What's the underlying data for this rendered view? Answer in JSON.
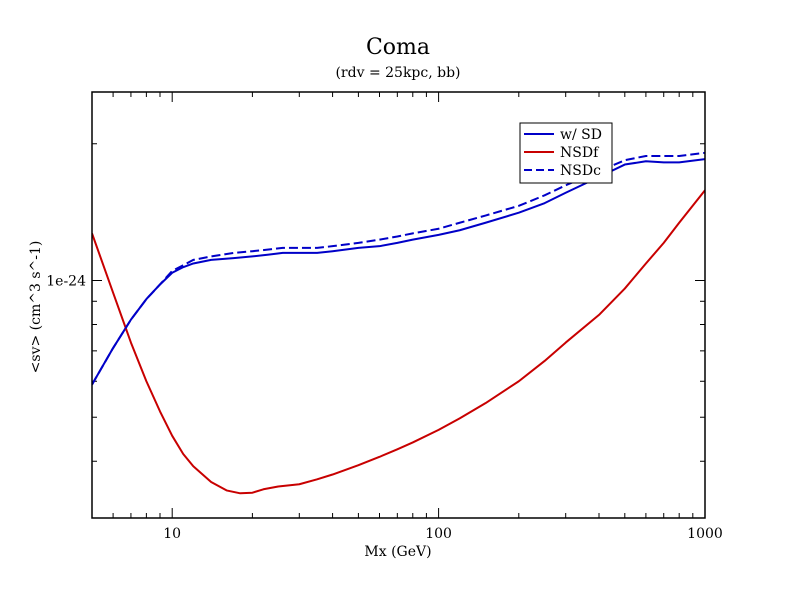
{
  "chart_data": {
    "type": "line",
    "title": "Coma",
    "subtitle": "(rdv = 25kpc, bb)",
    "xlabel": "Mx (GeV)",
    "ylabel": "<sv> (cm^3 s^-1)",
    "x_scale": "log",
    "y_scale": "log",
    "xlim": [
      5,
      1000
    ],
    "ylim": [
      3e-25,
      2.6e-24
    ],
    "x_ticks": [
      {
        "value": 10,
        "label": "10"
      },
      {
        "value": 100,
        "label": "100"
      },
      {
        "value": 1000,
        "label": "1000"
      }
    ],
    "y_ticks": [
      {
        "value": 1e-24,
        "label": "1e-24"
      }
    ],
    "grid": false,
    "legend_position": "top-right",
    "series": [
      {
        "name": "w/ SD",
        "color": "#0000c8",
        "dash": "solid",
        "x": [
          5,
          6,
          7,
          8,
          9,
          10,
          11,
          12,
          14,
          17,
          20,
          23,
          26,
          30,
          35,
          40,
          50,
          60,
          70,
          80,
          100,
          120,
          150,
          200,
          250,
          300,
          400,
          500,
          600,
          700,
          800,
          1000
        ],
        "y": [
          5.9e-25,
          7.1e-25,
          8.2e-25,
          9.1e-25,
          9.8e-25,
          1.04e-24,
          1.07e-24,
          1.09e-24,
          1.11e-24,
          1.12e-24,
          1.13e-24,
          1.14e-24,
          1.15e-24,
          1.15e-24,
          1.15e-24,
          1.16e-24,
          1.18e-24,
          1.19e-24,
          1.21e-24,
          1.23e-24,
          1.26e-24,
          1.29e-24,
          1.34e-24,
          1.41e-24,
          1.48e-24,
          1.56e-24,
          1.69e-24,
          1.8e-24,
          1.83e-24,
          1.82e-24,
          1.82e-24,
          1.85e-24
        ]
      },
      {
        "name": "NSDf",
        "color": "#c80000",
        "dash": "solid",
        "x": [
          5,
          6,
          7,
          8,
          9,
          10,
          11,
          12,
          14,
          16,
          18,
          20,
          22,
          25,
          30,
          35,
          40,
          50,
          60,
          70,
          80,
          100,
          120,
          150,
          200,
          250,
          300,
          400,
          500,
          600,
          700,
          800,
          1000
        ],
        "y": [
          1.27e-24,
          9.4e-25,
          7.3e-25,
          6e-25,
          5.15e-25,
          4.55e-25,
          4.15e-25,
          3.9e-25,
          3.6e-25,
          3.45e-25,
          3.4e-25,
          3.41e-25,
          3.47e-25,
          3.52e-25,
          3.56e-25,
          3.65e-25,
          3.74e-25,
          3.92e-25,
          4.09e-25,
          4.25e-25,
          4.4e-25,
          4.69e-25,
          4.97e-25,
          5.37e-25,
          6e-25,
          6.65e-25,
          7.3e-25,
          8.4e-25,
          9.6e-25,
          1.09e-24,
          1.21e-24,
          1.34e-24,
          1.58e-24
        ]
      },
      {
        "name": "NSDc",
        "color": "#0000c8",
        "dash": "dashed",
        "x": [
          5,
          6,
          7,
          8,
          9,
          10,
          11,
          12,
          14,
          17,
          20,
          23,
          26,
          30,
          35,
          40,
          50,
          60,
          70,
          80,
          100,
          120,
          150,
          200,
          250,
          300,
          400,
          500,
          600,
          700,
          800,
          1000
        ],
        "y": [
          5.9e-25,
          7.1e-25,
          8.2e-25,
          9.1e-25,
          9.8e-25,
          1.05e-24,
          1.08e-24,
          1.11e-24,
          1.13e-24,
          1.15e-24,
          1.16e-24,
          1.17e-24,
          1.18e-24,
          1.18e-24,
          1.18e-24,
          1.19e-24,
          1.21e-24,
          1.23e-24,
          1.25e-24,
          1.27e-24,
          1.3e-24,
          1.34e-24,
          1.39e-24,
          1.46e-24,
          1.54e-24,
          1.62e-24,
          1.74e-24,
          1.84e-24,
          1.88e-24,
          1.88e-24,
          1.88e-24,
          1.91e-24
        ]
      }
    ]
  }
}
